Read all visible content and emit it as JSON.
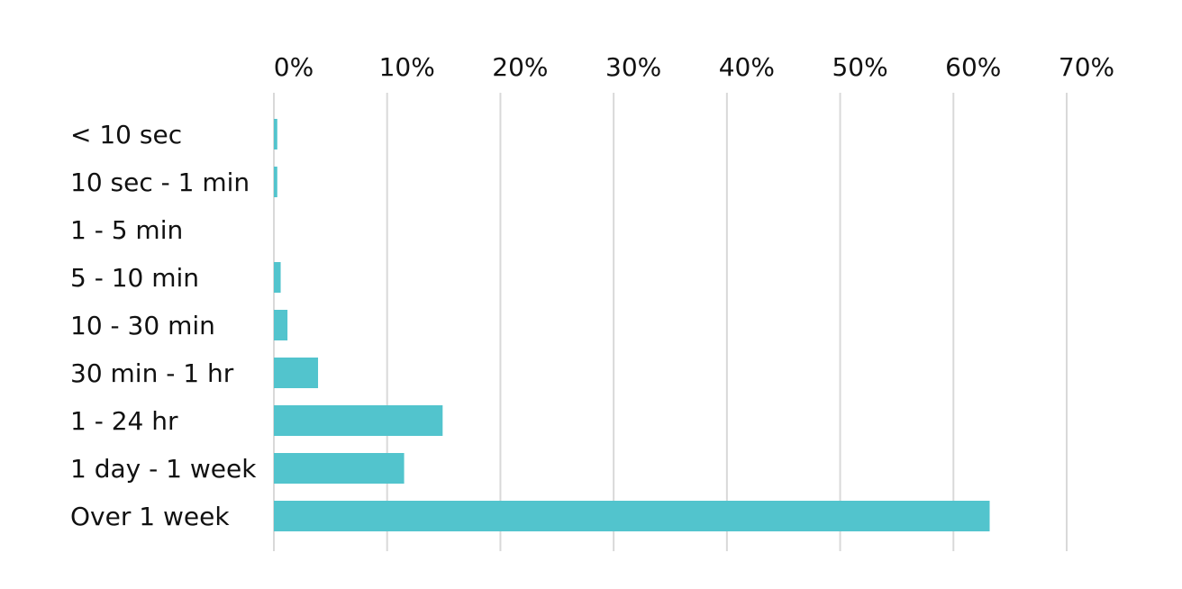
{
  "chart_data": {
    "type": "bar",
    "orientation": "horizontal",
    "title": "",
    "xlabel": "",
    "ylabel": "",
    "categories": [
      "< 10 sec",
      "10 sec - 1 min",
      "1 - 5 min",
      "5 - 10 min",
      "10 - 30 min",
      "30 min - 1 hr",
      "1 - 24 hr",
      "1 day - 1 week",
      "Over 1 week"
    ],
    "values": [
      0.3,
      0.3,
      0.0,
      0.6,
      1.2,
      3.9,
      14.9,
      11.5,
      63.2
    ],
    "xlim": [
      0,
      70
    ],
    "x_ticks": [
      0,
      10,
      20,
      30,
      40,
      50,
      60,
      70
    ],
    "x_tick_labels": [
      "0%",
      "10%",
      "20%",
      "30%",
      "40%",
      "50%",
      "60%",
      "70%"
    ],
    "x_axis_position": "top",
    "grid": true,
    "legend": "none",
    "colors": {
      "bar": "#52c4cd",
      "grid": "#d9d9d9",
      "text": "#111111"
    }
  }
}
